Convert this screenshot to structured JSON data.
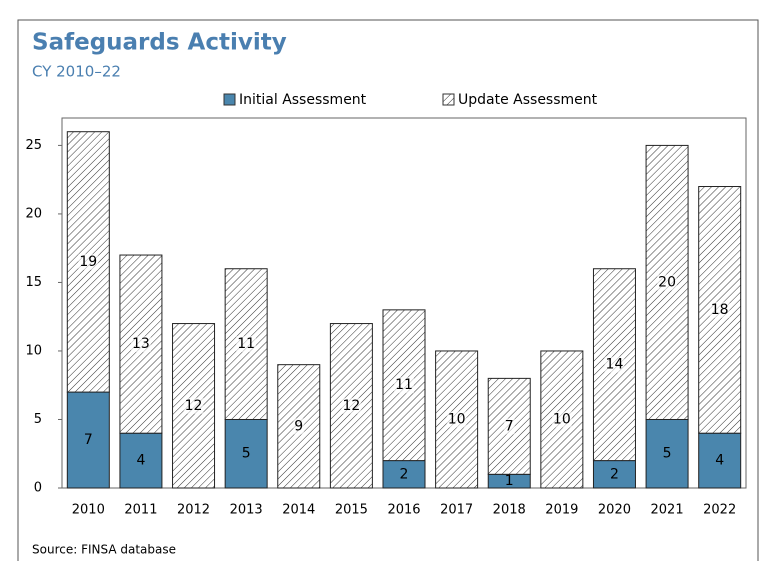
{
  "chart_data": {
    "type": "stacked_bar",
    "title": "Safeguards Activity",
    "subtitle": "CY 2010–22",
    "categories": [
      "2010",
      "2011",
      "2012",
      "2013",
      "2014",
      "2015",
      "2016",
      "2017",
      "2018",
      "2019",
      "2020",
      "2021",
      "2022"
    ],
    "series": [
      {
        "name": "Initial Assessment",
        "color": "#4a86ad",
        "values": [
          7,
          4,
          0,
          5,
          0,
          0,
          2,
          0,
          1,
          0,
          2,
          5,
          4
        ]
      },
      {
        "name": "Update Assessment",
        "color": "#ffffff",
        "values": [
          19,
          13,
          12,
          11,
          9,
          12,
          11,
          10,
          7,
          10,
          14,
          20,
          18
        ]
      }
    ],
    "ylim": [
      0,
      27
    ],
    "yticks": [
      0,
      5,
      10,
      15,
      20,
      25
    ],
    "source": "Source: FINSA database"
  }
}
